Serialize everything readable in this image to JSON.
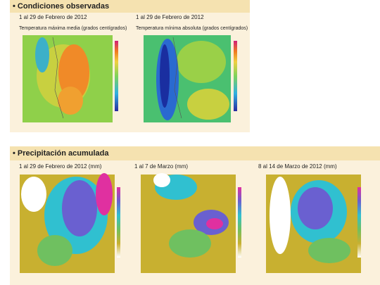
{
  "sections": [
    {
      "title": "• Condiciones observadas",
      "panels": [
        {
          "date": "1 al 29 de Febrero de 2012",
          "subtitle": "Temperatura máxima media (grados centígrados)"
        },
        {
          "date": "1 al 29 de Febrero de 2012",
          "subtitle": "Temperatura mínima absoluta (grados centígrados)"
        }
      ]
    },
    {
      "title": "• Precipitación acumulada",
      "panels": [
        {
          "date": "1 al 29 de Febrero de 2012 (mm)"
        },
        {
          "date": "1 al 7 de Marzo (mm)"
        },
        {
          "date": "8 al 14 de Marzo de 2012 (mm)"
        }
      ]
    }
  ]
}
